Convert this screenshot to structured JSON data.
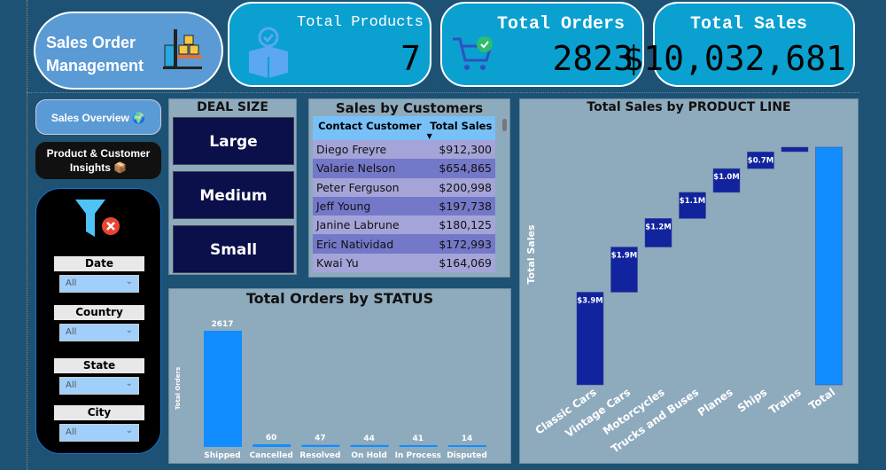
{
  "header": {
    "title": "Sales Order Management",
    "kpis": [
      {
        "label": "Total Products",
        "value": "7",
        "icon": "box-check-icon"
      },
      {
        "label": "Total Orders",
        "value": "2823",
        "icon": "cart-check-icon"
      },
      {
        "label": "Total Sales",
        "value": "$10,032,681"
      }
    ]
  },
  "nav": {
    "sales_overview": "Sales Overview 🌍",
    "product_insights": "Product & Customer Insights 📦"
  },
  "filters": {
    "icon": "clear-filter-icon",
    "slicers": [
      {
        "label": "Date",
        "value": "All"
      },
      {
        "label": "Country",
        "value": "All"
      },
      {
        "label": "State",
        "value": "All"
      },
      {
        "label": "City",
        "value": "All"
      }
    ]
  },
  "deal_size": {
    "title": "DEAL SIZE",
    "options": [
      "Large",
      "Medium",
      "Small"
    ]
  },
  "customers": {
    "title": "Sales by Customers",
    "columns": [
      "Contact Customer",
      "Total Sales"
    ],
    "rows": [
      [
        "Diego Freyre",
        "$912,300"
      ],
      [
        "Valarie Nelson",
        "$654,865"
      ],
      [
        "Peter Ferguson",
        "$200,998"
      ],
      [
        "Jeff Young",
        "$197,738"
      ],
      [
        "Janine Labrune",
        "$180,125"
      ],
      [
        "Eric Natividad",
        "$172,993"
      ],
      [
        "Kwai Yu",
        "$164,069"
      ]
    ]
  },
  "chart_data": [
    {
      "type": "bar",
      "title": "Total Orders by STATUS",
      "ylabel": "Total Orders",
      "xlabel": "",
      "categories": [
        "Shipped",
        "Cancelled",
        "Resolved",
        "On Hold",
        "In Process",
        "Disputed"
      ],
      "values": [
        2617,
        60,
        47,
        44,
        41,
        14
      ],
      "color": "#118dff",
      "data_labels": true
    },
    {
      "type": "waterfall",
      "title": "Total Sales by PRODUCT LINE",
      "ylabel": "Total Sales",
      "xlabel": "",
      "categories": [
        "Classic Cars",
        "Vintage Cars",
        "Motorcycles",
        "Trucks and Buses",
        "Planes",
        "Ships",
        "Trains",
        "Total"
      ],
      "values": [
        3.9,
        1.9,
        1.2,
        1.1,
        1.0,
        0.7,
        0.2,
        10.0
      ],
      "unit": "$M",
      "labels": [
        "$3.9M",
        "$1.9M",
        "$1.2M",
        "$1.1M",
        "$1.0M",
        "$0.7M",
        "",
        ""
      ],
      "colors": {
        "step": "#12239e",
        "total": "#118dff"
      }
    }
  ]
}
